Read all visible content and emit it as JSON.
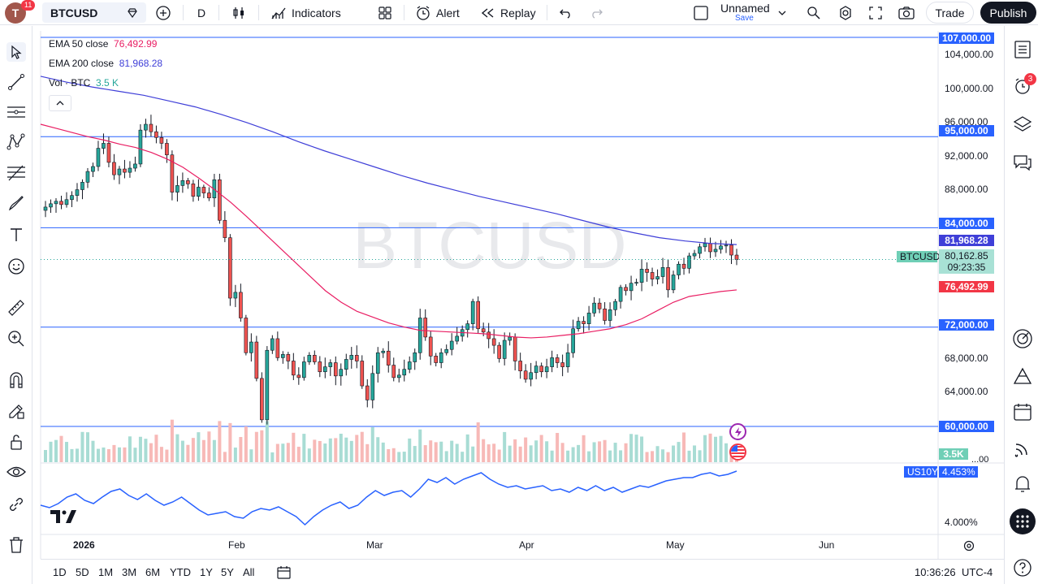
{
  "topbar": {
    "avatar_letter": "T",
    "avatar_badge": "11",
    "symbol": "BTCUSD",
    "interval": "D",
    "indicators_label": "Indicators",
    "alert_label": "Alert",
    "replay_label": "Replay",
    "layout_name": "Unnamed",
    "layout_save": "Save",
    "trade_label": "Trade",
    "publish_label": "Publish"
  },
  "legend": {
    "ema50_label": "EMA 50 close",
    "ema50_value": "76,492.99",
    "ema200_label": "EMA 200 close",
    "ema200_value": "81,968.28",
    "vol_label": "Vol · BTC",
    "vol_value": "3.5 K"
  },
  "watermark": "BTCUSD",
  "price_axis": {
    "ticks": [
      "104,000.00",
      "100,000.00",
      "96,000.00",
      "92,000.00",
      "88,000.00",
      "68,000.00",
      "64,000.00"
    ],
    "tags": {
      "level_107": "107,000.00",
      "level_95": "95,000.00",
      "level_84": "84,000.00",
      "ema200": "81,968.28",
      "symbol_tag": "BTCUSD",
      "last_price": "80,162.85",
      "countdown": "09:23:35",
      "ema50": "76,492.99",
      "level_72": "72,000.00",
      "level_60": "60,000.00",
      "volume": "3.5K",
      "vol_partial": "...00",
      "us10y_symbol": "US10Y",
      "us10y_value": "4.453%",
      "us10y_tick": "4.000%"
    }
  },
  "time_axis": [
    "2026",
    "Feb",
    "Mar",
    "Apr",
    "May",
    "Jun"
  ],
  "rightbar": {
    "alerts_badge": "3"
  },
  "bottombar": {
    "ranges": [
      "1D",
      "5D",
      "1M",
      "3M",
      "6M",
      "YTD",
      "1Y",
      "5Y",
      "All"
    ],
    "clock": "10:36:26",
    "timezone": "UTC-4"
  },
  "colors": {
    "up": "#26a69a",
    "down": "#ef5350",
    "ema50": "#e91e63",
    "ema200": "#3f3fd8",
    "hline": "#2962ff",
    "us10y": "#2962ff"
  },
  "chart_data": {
    "type": "candlestick",
    "symbol": "BTCUSD",
    "ylim": [
      58000,
      108000
    ],
    "horizontal_levels": [
      107000,
      95000,
      84000,
      72000,
      60000
    ],
    "last_price": 80162.85,
    "ema50_last": 76492.99,
    "ema200_last": 81968.28,
    "candles_close": [
      86500,
      86900,
      87200,
      86800,
      87400,
      87900,
      88600,
      89500,
      90800,
      91400,
      93600,
      94200,
      91900,
      90400,
      91100,
      90700,
      91200,
      91700,
      95800,
      96500,
      95600,
      94900,
      94200,
      92800,
      88300,
      89100,
      89700,
      89300,
      87800,
      88900,
      88200,
      87600,
      89800,
      84900,
      82800,
      75500,
      76200,
      73100,
      68900,
      70200,
      65800,
      60800,
      69200,
      70600,
      68300,
      68700,
      67900,
      66200,
      65900,
      67800,
      68600,
      67800,
      66600,
      67200,
      67700,
      66100,
      66900,
      68100,
      68600,
      67900,
      64900,
      63200,
      66400,
      68900,
      69100,
      67400,
      65900,
      66200,
      66900,
      67800,
      68900,
      73100,
      70800,
      68500,
      67700,
      68900,
      69300,
      70300,
      70900,
      71700,
      72400,
      75100,
      71800,
      71400,
      70600,
      69800,
      68200,
      70400,
      70800,
      67900,
      66700,
      65700,
      66500,
      67300,
      66600,
      67200,
      68300,
      67700,
      67200,
      68900,
      71800,
      72700,
      72400,
      73700,
      74900,
      74200,
      72800,
      74100,
      75100,
      76800,
      76400,
      77300,
      77400,
      79000,
      78600,
      77800,
      78100,
      79200,
      76500,
      78300,
      79600,
      79100,
      80600,
      80900,
      81700,
      82100,
      81100,
      81400,
      81800,
      81900,
      80700,
      80162
    ],
    "ema50": [
      96500,
      96000,
      95500,
      95000,
      94600,
      94100,
      93700,
      93100,
      92300,
      91300,
      90000,
      88600,
      87100,
      85400,
      83600,
      81800,
      80000,
      78200,
      76400,
      75000,
      73900,
      73200,
      72500,
      72000,
      71600,
      71500,
      71400,
      71300,
      71200,
      71000,
      70800,
      70700,
      70800,
      71000,
      71200,
      71500,
      71800,
      72300,
      73000,
      74000,
      75000,
      75700,
      76000,
      76300,
      76493
    ],
    "ema200": [
      102300,
      101600,
      101000,
      100500,
      100000,
      99300,
      98600,
      97700,
      96700,
      95600,
      94400,
      93300,
      92300,
      91300,
      90300,
      89400,
      88600,
      87800,
      87100,
      86400,
      85700,
      84900,
      84100,
      83400,
      82800,
      82400,
      82100,
      81968
    ],
    "us10y_range_label": "4.000%",
    "us10y_last": 4.453
  }
}
